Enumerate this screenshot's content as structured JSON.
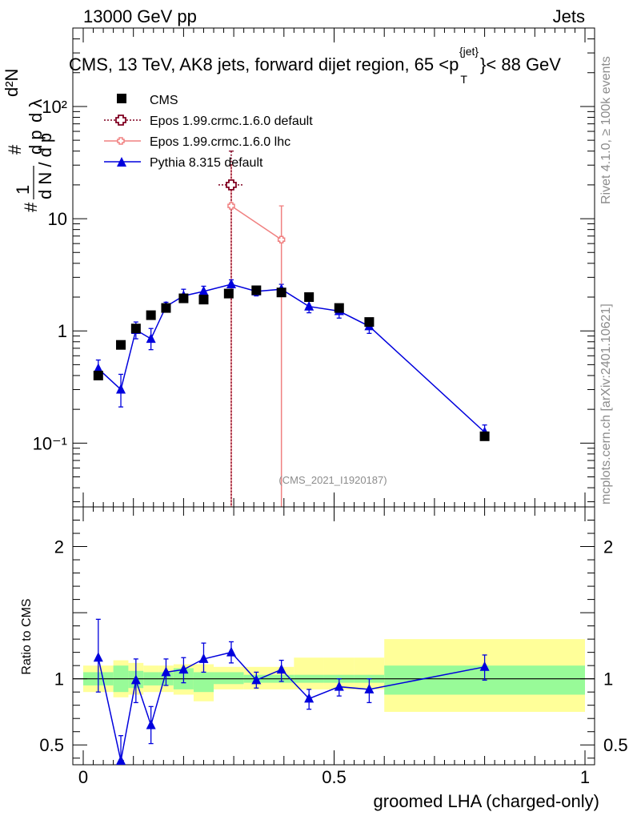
{
  "header": {
    "left": "13000 GeV pp",
    "right": "Jets",
    "title": "CMS, 13 TeV, AK8 jets, forward dijet region, 65 <p",
    "title_sup": "{jet}",
    "title_sub": "T",
    "title_end": "}< 88 GeV"
  },
  "side": {
    "rivet": "Rivet 4.1.0, ≥ 100k events",
    "mcplots": "mcplots.cern.ch [arXiv:2401.10621]"
  },
  "watermark": "(CMS_2021_I1920187)",
  "yaxis": {
    "main_label": "1 / dN / dp_T  d²N / dp_T dλ",
    "ratio_label": "Ratio to CMS"
  },
  "xaxis": {
    "label": "groomed LHA (charged-only)"
  },
  "legend": [
    {
      "name": "CMS"
    },
    {
      "name": "Epos 1.99.crmc.1.6.0 default"
    },
    {
      "name": "Epos 1.99.crmc.1.6.0 lhc"
    },
    {
      "name": "Pythia 8.315 default"
    }
  ],
  "colors": {
    "cms": "#000000",
    "epos_default": "#800020",
    "epos_lhc": "#f08080",
    "pythia": "#0000dd",
    "band_inner": "#98fb98",
    "band_outer": "#ffff99"
  },
  "chart_data": {
    "type": "scatter",
    "title": "CMS, 13 TeV, AK8 jets, forward dijet region, 65 <p_T^{jet}< 88 GeV",
    "xlabel": "groomed LHA (charged-only)",
    "ylabel": "1/dN/dp_T dN/dp_T dlambda",
    "xlim": [
      0,
      1
    ],
    "ylim": [
      0.027,
      500
    ],
    "yscale": "log",
    "x_ticks": [
      0,
      0.5,
      1
    ],
    "x_tick_labels": [
      "0",
      "0.5",
      "1"
    ],
    "y_tick_labels": [
      "10⁻¹",
      "1",
      "10",
      "10²"
    ],
    "bin_edges": [
      0,
      0.06,
      0.09,
      0.12,
      0.15,
      0.18,
      0.22,
      0.26,
      0.32,
      0.37,
      0.42,
      0.48,
      0.54,
      0.6,
      1.0
    ],
    "series": [
      {
        "name": "CMS",
        "x": [
          0.03,
          0.075,
          0.105,
          0.135,
          0.165,
          0.2,
          0.24,
          0.29,
          0.345,
          0.395,
          0.45,
          0.51,
          0.57,
          0.8
        ],
        "values": [
          0.4,
          0.75,
          1.05,
          1.38,
          1.6,
          1.95,
          1.9,
          2.15,
          2.3,
          2.2,
          2.0,
          1.6,
          1.2,
          0.115
        ]
      },
      {
        "name": "Epos 1.99.crmc.1.6.0 default",
        "x": [
          0.295
        ],
        "values": [
          20
        ],
        "err_up": [
          40
        ],
        "err_down": [
          0.01
        ]
      },
      {
        "name": "Epos 1.99.crmc.1.6.0 lhc",
        "x": [
          0.295,
          0.395
        ],
        "values": [
          13,
          6.5
        ],
        "err_up": [
          30,
          13
        ],
        "err_down": [
          0.01,
          0.01
        ]
      },
      {
        "name": "Pythia 8.315 default",
        "x": [
          0.03,
          0.075,
          0.105,
          0.135,
          0.165,
          0.2,
          0.24,
          0.295,
          0.345,
          0.395,
          0.45,
          0.51,
          0.57,
          0.8
        ],
        "values": [
          0.46,
          0.3,
          1.02,
          0.85,
          1.65,
          2.05,
          2.25,
          2.6,
          2.25,
          2.35,
          1.65,
          1.5,
          1.1,
          0.125
        ],
        "err_up": [
          0.55,
          0.41,
          1.2,
          1.05,
          1.8,
          2.35,
          2.5,
          2.85,
          2.45,
          2.6,
          1.85,
          1.7,
          1.25,
          0.145
        ],
        "err_down": [
          0.38,
          0.21,
          0.85,
          0.68,
          1.48,
          1.8,
          2.0,
          2.35,
          2.05,
          2.1,
          1.45,
          1.3,
          0.95,
          0.108
        ]
      }
    ],
    "ratio": {
      "ylabel": "Ratio to CMS",
      "ylim": [
        0.35,
        2.3
      ],
      "y_ticks": [
        0.5,
        1,
        2
      ],
      "y_tick_labels": [
        "0.5",
        "1",
        "2"
      ],
      "inner_band": [
        [
          0.95,
          1.05
        ],
        [
          0.9,
          1.1
        ],
        [
          0.93,
          1.06
        ],
        [
          0.95,
          1.05
        ],
        [
          0.95,
          1.05
        ],
        [
          0.92,
          1.08
        ],
        [
          0.9,
          1.05
        ],
        [
          0.96,
          1.05
        ],
        [
          0.97,
          1.03
        ],
        [
          0.97,
          1.03
        ],
        [
          0.97,
          1.03
        ],
        [
          0.97,
          1.03
        ],
        [
          0.97,
          1.03
        ],
        [
          0.88,
          1.1
        ]
      ],
      "outer_band": [
        [
          0.9,
          1.1
        ],
        [
          0.86,
          1.14
        ],
        [
          0.88,
          1.12
        ],
        [
          0.9,
          1.1
        ],
        [
          0.9,
          1.1
        ],
        [
          0.88,
          1.11
        ],
        [
          0.83,
          1.11
        ],
        [
          0.92,
          1.09
        ],
        [
          0.92,
          1.09
        ],
        [
          0.92,
          1.09
        ],
        [
          0.92,
          1.16
        ],
        [
          0.92,
          1.16
        ],
        [
          0.92,
          1.16
        ],
        [
          0.75,
          1.3
        ]
      ],
      "pythia": {
        "x": [
          0.03,
          0.075,
          0.105,
          0.135,
          0.165,
          0.2,
          0.24,
          0.295,
          0.345,
          0.395,
          0.45,
          0.51,
          0.57,
          0.8
        ],
        "values": [
          1.16,
          0.38,
          0.99,
          0.65,
          1.05,
          1.07,
          1.15,
          1.2,
          0.99,
          1.07,
          0.85,
          0.94,
          0.92,
          1.09
        ],
        "err_up": [
          1.45,
          0.57,
          1.15,
          0.79,
          1.15,
          1.16,
          1.27,
          1.28,
          1.05,
          1.14,
          0.92,
          1.0,
          1.0,
          1.18
        ],
        "err_down": [
          0.9,
          0.35,
          0.82,
          0.51,
          0.95,
          0.97,
          1.05,
          1.12,
          0.93,
          0.98,
          0.77,
          0.87,
          0.82,
          0.99
        ]
      }
    }
  }
}
